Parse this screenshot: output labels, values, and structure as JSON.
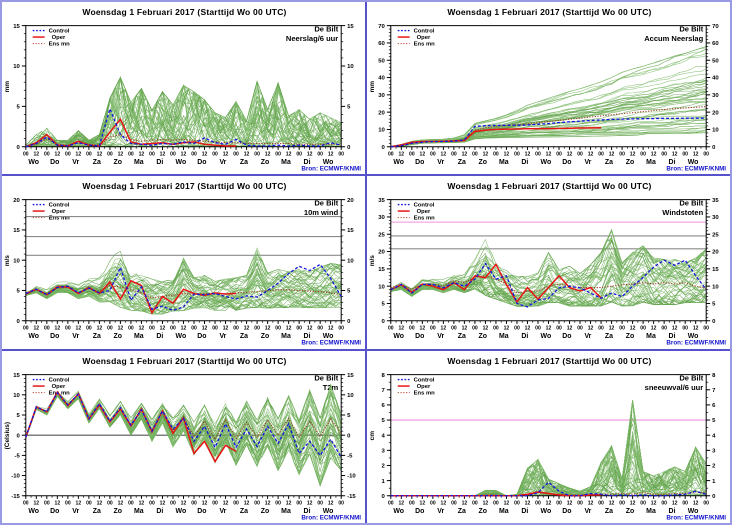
{
  "shared": {
    "title": "Woensdag  1 Februari 2017    (Starttijd Wo 00 UTC)",
    "station": "De Bilt",
    "source": "Bron: ECMWF/KNMI",
    "legend": {
      "control": "Control",
      "oper": "Oper",
      "ensmean": "Ens mn"
    },
    "hour_label_cycle": [
      "00",
      "12"
    ],
    "final_hour_label": "00",
    "day_labels": [
      "Wo",
      "Do",
      "Vr",
      "Za",
      "Zo",
      "Ma",
      "Di",
      "Wo",
      "Do",
      "Vr",
      "Za",
      "Zo",
      "Ma",
      "Di",
      "Wo"
    ],
    "colors": {
      "control": "#1414e0",
      "oper": "#e81414",
      "ensmean": "#9c3a28",
      "member_a": "#61a24b",
      "member_b": "#83bd6e",
      "threshold_gray": "#8a8a8a",
      "threshold_magenta": "#ee90e0",
      "frame": "#000000",
      "source_text": "#1111cc",
      "border": "#5552cc"
    }
  },
  "chart_data": [
    {
      "type": "line",
      "variable": "Neerslag/6 uur",
      "ylabel": "mm",
      "ylim": [
        0,
        15
      ],
      "yticks": [
        0,
        5,
        10,
        15
      ],
      "y_minor_step": 1,
      "x_hours_step": 12,
      "x_range_hours": [
        0,
        360
      ],
      "kind": "spiky",
      "thresholds": [],
      "series": {
        "control": [
          0,
          0.4,
          1.2,
          0.2,
          0.1,
          0.5,
          0.2,
          0.1,
          4.7,
          1.5,
          0.4,
          0.3,
          0.2,
          0.4,
          0.3,
          0.6,
          0.4,
          1.1,
          0.5,
          0.3,
          0.9,
          0.2,
          0.1,
          0.1,
          0.2,
          0.1,
          0.2,
          0.1,
          0.1,
          0.5,
          0.2
        ],
        "oper": [
          0,
          0.5,
          1.5,
          0.2,
          0.1,
          0.7,
          0.2,
          0.1,
          1.8,
          3.4,
          0.6,
          0.3,
          0.4,
          0.5,
          0.3,
          0.5,
          0.6,
          0.3,
          0.2,
          0.1,
          0.1
        ],
        "ensmean": [
          0,
          0.3,
          1,
          0.3,
          0.2,
          0.5,
          0.3,
          0.2,
          1.2,
          1.5,
          0.9,
          0.7,
          0.8,
          0.9,
          0.8,
          0.9,
          0.8,
          0.7,
          0.6,
          0.5,
          0.5,
          0.4,
          0.4,
          0.4,
          0.4,
          0.4,
          0.3,
          0.3,
          0.3,
          0.3,
          0.3
        ]
      },
      "ensemble": {
        "members": 50,
        "min": 0,
        "max": [
          0.2,
          1.5,
          2.3,
          0.8,
          0.8,
          2,
          0.8,
          1.5,
          6,
          8.6,
          5.5,
          7.2,
          4.5,
          6.8,
          5.2,
          7.6,
          6.8,
          5.8,
          4.2,
          3.6,
          5.6,
          3.2,
          8.1,
          4.6,
          7.9,
          3.8,
          4.6,
          3.4,
          4.2,
          3.6,
          3
        ]
      }
    },
    {
      "type": "line",
      "variable": "Accum Neerslag",
      "ylabel": "mm",
      "ylim": [
        0,
        70
      ],
      "yticks": [
        0,
        10,
        20,
        30,
        40,
        50,
        60,
        70
      ],
      "y_minor_step": 2,
      "x_hours_step": 12,
      "x_range_hours": [
        0,
        360
      ],
      "kind": "accum",
      "thresholds": [],
      "series": {
        "control": [
          0,
          0.6,
          2,
          2.6,
          3,
          3.1,
          3.2,
          4,
          11.8,
          12.2,
          12.3,
          12.4,
          12.4,
          12.6,
          13,
          13.4,
          14,
          14.4,
          14.8,
          15.2,
          15.5,
          15.8,
          16,
          16.1,
          16.2,
          16.3,
          16.4,
          16.4,
          16.5,
          16.5,
          16.5
        ],
        "oper": [
          0,
          1,
          2.6,
          3,
          3.1,
          3.2,
          3.3,
          3.6,
          8.8,
          9.6,
          10,
          10.2,
          10.3,
          10.4,
          10.5,
          10.5,
          10.6,
          10.7,
          10.8,
          10.9,
          11
        ],
        "ensmean": [
          0,
          0.8,
          2.3,
          3,
          3.1,
          3.2,
          3.4,
          4.2,
          9.5,
          11,
          11.8,
          12.3,
          12.8,
          13.3,
          13.9,
          14.6,
          15.2,
          15.9,
          16.5,
          17.2,
          17.8,
          18.5,
          19.1,
          19.7,
          20.3,
          20.9,
          21.5,
          22,
          22.4,
          22.8,
          23.2
        ]
      },
      "ensemble": {
        "members": 50,
        "min": [
          0,
          0.2,
          1.2,
          2,
          2.2,
          2.3,
          2.4,
          2.6,
          4.5,
          5,
          5.2,
          5.3,
          5.4,
          5.5,
          5.5,
          5.6,
          5.7,
          5.8,
          6,
          6.1,
          6.2,
          6.3,
          6.5,
          6.6,
          6.8,
          7,
          7.1,
          7.3,
          7.5,
          7.8,
          8
        ],
        "max": [
          0.3,
          1.4,
          3.2,
          4,
          4.2,
          4.4,
          5,
          7,
          13.5,
          15,
          16.5,
          18.5,
          21,
          24,
          26,
          28,
          30,
          32,
          33.5,
          35.5,
          37.5,
          40,
          43,
          45,
          46.5,
          48.5,
          50.5,
          52.5,
          54,
          56,
          58
        ]
      }
    },
    {
      "type": "line",
      "variable": "10m wind",
      "ylabel": "m/s",
      "ylim": [
        0,
        20
      ],
      "yticks": [
        0,
        5,
        10,
        15,
        20
      ],
      "y_minor_step": 1,
      "x_hours_step": 12,
      "x_range_hours": [
        0,
        360
      ],
      "kind": "smooth",
      "thresholds": [
        {
          "value": 10.8,
          "color": "#8a8a8a"
        },
        {
          "value": 13.9,
          "color": "#8a8a8a"
        },
        {
          "value": 17.2,
          "color": "#8a8a8a"
        }
      ],
      "series": {
        "control": [
          4.5,
          5.2,
          4.3,
          5.5,
          5.7,
          4.6,
          5.4,
          4.6,
          5,
          8.8,
          3.4,
          5.6,
          1.9,
          2.4,
          1.7,
          2.3,
          4.4,
          4.3,
          4.5,
          4,
          3.6,
          4.1,
          3.9,
          5,
          6.2,
          7.8,
          9,
          8.3,
          9.3,
          7,
          4
        ],
        "oper": [
          4.4,
          5.2,
          4.3,
          5.6,
          5.6,
          4.5,
          5.5,
          4.5,
          6.4,
          3.6,
          6.6,
          5.8,
          1.3,
          4,
          2.9,
          5.2,
          4.5,
          4.2,
          4.6,
          4.4,
          4.5
        ],
        "ensmean": [
          4.5,
          5.2,
          4.4,
          5.4,
          5.5,
          4.6,
          5.3,
          4.8,
          5.8,
          5.6,
          5.2,
          4.6,
          3.8,
          4,
          4.2,
          4.5,
          4.4,
          4.5,
          4.4,
          4.5,
          4.6,
          4.7,
          4.8,
          5,
          5.1,
          5.1,
          5,
          4.9,
          4.8,
          4.6,
          4.3
        ]
      },
      "ensemble": {
        "members": 50,
        "min": [
          4.1,
          4.6,
          3.6,
          4.6,
          4.6,
          3.6,
          4,
          3,
          3,
          2,
          1.6,
          1.5,
          1,
          1,
          1.5,
          1.5,
          2,
          2,
          1.6,
          1.6,
          1.6,
          2,
          2,
          2,
          2,
          2.1,
          2.1,
          2,
          2,
          2,
          2
        ],
        "max": [
          5,
          6,
          5.4,
          6.4,
          6.5,
          6,
          7,
          7.2,
          10,
          12.3,
          8.2,
          7.6,
          7,
          6.6,
          7,
          10.5,
          7.2,
          7.6,
          6.6,
          7,
          7.2,
          7.6,
          12.2,
          8,
          8.6,
          8.2,
          8.6,
          8.2,
          9,
          9.6,
          9.4
        ]
      }
    },
    {
      "type": "line",
      "variable": "Windstoten",
      "ylabel": "m/s",
      "ylim": [
        0,
        35
      ],
      "yticks": [
        0,
        5,
        10,
        15,
        20,
        25,
        30,
        35
      ],
      "y_minor_step": 1,
      "x_hours_step": 12,
      "x_range_hours": [
        0,
        360
      ],
      "kind": "smooth",
      "thresholds": [
        {
          "value": 20.8,
          "color": "#8a8a8a"
        },
        {
          "value": 24.5,
          "color": "#8a8a8a"
        },
        {
          "value": 28.5,
          "color": "#ee90e0"
        }
      ],
      "series": {
        "control": [
          9,
          10.5,
          8,
          10.5,
          10.5,
          9.5,
          11,
          10,
          12,
          16.5,
          12,
          13,
          5,
          4,
          6,
          6.5,
          9.5,
          10,
          9.5,
          8,
          6.5,
          8,
          7,
          10,
          12.5,
          15.5,
          17.5,
          16,
          17.5,
          13,
          9
        ],
        "oper": [
          9,
          10.4,
          8.2,
          10.6,
          10,
          9,
          11,
          9,
          13,
          12.4,
          16.3,
          10.4,
          5.4,
          9.6,
          6.2,
          9.6,
          13,
          9.6,
          8.6,
          9.6,
          6.6
        ],
        "ensmean": [
          9.5,
          10.6,
          9,
          10.6,
          10.6,
          10,
          11.6,
          11,
          12.6,
          13,
          12,
          10.6,
          8,
          8.6,
          8.6,
          10,
          10.6,
          10,
          9.6,
          9.6,
          9.6,
          10,
          10.4,
          10.6,
          11,
          10.6,
          11,
          10.6,
          11,
          10,
          9.4
        ]
      },
      "ensemble": {
        "members": 50,
        "min": [
          8.4,
          9,
          7,
          9,
          9,
          8,
          9,
          8,
          9,
          7,
          6,
          5,
          4,
          4,
          4,
          5,
          5,
          4,
          4,
          4,
          4,
          5,
          4,
          4,
          5,
          4.4,
          4.4,
          4.4,
          5,
          5,
          5
        ],
        "max": [
          10,
          11.6,
          10,
          12,
          12,
          12,
          13.4,
          14,
          18,
          23.8,
          17,
          15,
          13,
          13,
          14,
          20,
          15,
          16,
          14,
          16.4,
          20,
          26.7,
          17,
          20,
          22,
          18.4,
          18,
          18,
          17,
          18.4,
          21
        ]
      }
    },
    {
      "type": "line",
      "variable": "T2m",
      "ylabel": "(Celsius)",
      "ylim": [
        -15,
        15
      ],
      "yticks": [
        -15,
        -10,
        -5,
        0,
        5,
        10,
        15
      ],
      "y_minor_step": 1,
      "x_hours_step": 12,
      "x_range_hours": [
        0,
        360
      ],
      "kind": "smooth",
      "thresholds": [
        {
          "value": 0,
          "color": "#555555"
        }
      ],
      "series": {
        "control": [
          -0.5,
          7,
          5.8,
          10.5,
          7.5,
          10.2,
          4,
          7.8,
          3.5,
          6.8,
          2.5,
          6.3,
          1,
          6,
          1.5,
          4.2,
          -1.5,
          2.2,
          -3,
          2.8,
          -3,
          1.5,
          -2.8,
          2.2,
          -2,
          2.8,
          -4.5,
          -1.5,
          -5,
          -1,
          -5.5
        ],
        "oper": [
          -0.5,
          7,
          5.8,
          10.7,
          7.3,
          10.3,
          4,
          7.5,
          3.3,
          6.5,
          2.3,
          6.5,
          0.8,
          6,
          0.5,
          4.3,
          -4.5,
          -1.5,
          -6.5,
          -2.5,
          -4
        ],
        "ensmean": [
          -0.5,
          7,
          5.8,
          10.5,
          7.4,
          10.2,
          4,
          7.6,
          3.4,
          6.6,
          2.4,
          6.2,
          1,
          5.8,
          1.2,
          4.5,
          -0.5,
          3.5,
          -1,
          3.8,
          -0.8,
          3.2,
          -0.5,
          3.8,
          0,
          4.2,
          -0.5,
          3.5,
          -0.3,
          4,
          0.5
        ]
      },
      "ensemble": {
        "members": 50,
        "min": [
          -0.8,
          6.4,
          5,
          9.6,
          6.6,
          9,
          3,
          6.6,
          2,
          5,
          0,
          4,
          -1.6,
          3,
          -3,
          1,
          -5,
          -1,
          -7,
          -2,
          -7.6,
          -2.6,
          -8,
          -3,
          -9,
          -4,
          -10,
          -5,
          -12.8,
          -6,
          -9
        ],
        "max": [
          0,
          7.6,
          6.6,
          11,
          8.4,
          11,
          5.4,
          9,
          5,
          8.4,
          4.4,
          8,
          4,
          8,
          4.4,
          7.6,
          3.4,
          7.6,
          3,
          8,
          3.4,
          8.6,
          4,
          9.6,
          4.4,
          10,
          4,
          11.6,
          4.6,
          13,
          5.4
        ]
      }
    },
    {
      "type": "line",
      "variable": "sneeuwval/6 uur",
      "ylabel": "cm",
      "ylim": [
        0,
        8
      ],
      "yticks": [
        0,
        1,
        2,
        3,
        4,
        5,
        6,
        7,
        8
      ],
      "y_minor_step": 0.5,
      "x_hours_step": 12,
      "x_range_hours": [
        0,
        360
      ],
      "kind": "spiky",
      "thresholds": [
        {
          "value": 5,
          "color": "#ee90e0"
        }
      ],
      "series": {
        "control": [
          0,
          0,
          0,
          0,
          0,
          0,
          0,
          0,
          0,
          0,
          0,
          0,
          0,
          0,
          0.2,
          0.9,
          0.3,
          0,
          0,
          0.15,
          0.1,
          0,
          0.05,
          0,
          0.05,
          0,
          0,
          0.05,
          0.1,
          0.3,
          0.1
        ],
        "oper": [
          0,
          0,
          0,
          0,
          0,
          0,
          0,
          0,
          0,
          0,
          0,
          0,
          0,
          0.1,
          0.25,
          0.15,
          0.05,
          0,
          0,
          0.05,
          0.05
        ],
        "ensmean": [
          0,
          0,
          0,
          0,
          0,
          0,
          0,
          0,
          0,
          0.05,
          0.05,
          0,
          0,
          0.1,
          0.2,
          0.15,
          0.1,
          0.05,
          0.05,
          0.05,
          0.1,
          0.1,
          0.15,
          0.1,
          0.2,
          0.1,
          0.1,
          0.15,
          0.15,
          0.25,
          0.2
        ]
      },
      "ensemble": {
        "members": 50,
        "min": 0,
        "max": [
          0,
          0,
          0,
          0,
          0,
          0,
          0,
          0,
          0,
          0.35,
          0.35,
          0,
          0.1,
          1.8,
          2.4,
          1.1,
          0.8,
          0.5,
          0.3,
          0.6,
          2.2,
          3.3,
          1.1,
          6.3,
          1.6,
          1.3,
          1.6,
          1.9,
          1.6,
          3.2,
          2.1
        ]
      }
    }
  ]
}
